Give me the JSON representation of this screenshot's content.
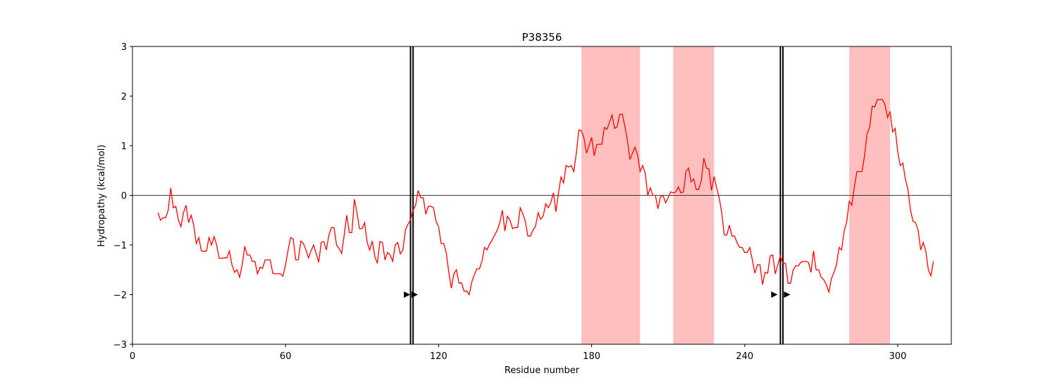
{
  "chart_data": {
    "type": "line",
    "title": "P38356",
    "x_label": "Residue number",
    "y_label": "Hydropathy (kcal/mol)",
    "color": "#ff0000",
    "x": [
      10,
      11,
      12,
      13,
      14,
      15,
      16,
      17,
      18,
      19,
      20,
      21,
      22,
      23,
      24,
      25,
      26,
      27,
      28,
      29,
      30,
      31,
      32,
      33,
      34,
      35,
      36,
      37,
      38,
      39,
      40,
      41,
      42,
      43,
      44,
      45,
      46,
      47,
      48,
      49,
      50,
      51,
      52,
      53,
      54,
      55,
      56,
      57,
      58,
      59,
      60,
      61,
      62,
      63,
      64,
      65,
      66,
      67,
      68,
      69,
      70,
      71,
      72,
      73,
      74,
      75,
      76,
      77,
      78,
      79,
      80,
      81,
      82,
      83,
      84,
      85,
      86,
      87,
      88,
      89,
      90,
      91,
      92,
      93,
      94,
      95,
      96,
      97,
      98,
      99,
      100,
      101,
      102,
      103,
      104,
      105,
      106,
      107,
      108,
      109,
      110,
      111,
      112,
      113,
      114,
      115,
      116,
      117,
      118,
      119,
      120,
      121,
      122,
      123,
      124,
      125,
      126,
      127,
      128,
      129,
      130,
      131,
      132,
      133,
      134,
      135,
      136,
      137,
      138,
      139,
      140,
      141,
      142,
      143,
      144,
      145,
      146,
      147,
      148,
      149,
      150,
      151,
      152,
      153,
      154,
      155,
      156,
      157,
      158,
      159,
      160,
      161,
      162,
      163,
      164,
      165,
      166,
      167,
      168,
      169,
      170,
      171,
      172,
      173,
      174,
      175,
      176,
      177,
      178,
      179,
      180,
      181,
      182,
      183,
      184,
      185,
      186,
      187,
      188,
      189,
      190,
      191,
      192,
      193,
      194,
      195,
      196,
      197,
      198,
      199,
      200,
      201,
      202,
      203,
      204,
      205,
      206,
      207,
      208,
      209,
      210,
      211,
      212,
      213,
      214,
      215,
      216,
      217,
      218,
      219,
      220,
      221,
      222,
      223,
      224,
      225,
      226,
      227,
      228,
      229,
      230,
      231,
      232,
      233,
      234,
      235,
      236,
      237,
      238,
      239,
      240,
      241,
      242,
      243,
      244,
      245,
      246,
      247,
      248,
      249,
      250,
      251,
      252,
      253,
      254,
      255,
      256,
      257,
      258,
      259,
      260,
      261,
      262,
      263,
      264,
      265,
      266,
      267,
      268,
      269,
      270,
      271,
      272,
      273,
      274,
      275,
      276,
      277,
      278,
      279,
      280,
      281,
      282,
      283,
      284,
      285,
      286,
      287,
      288,
      289,
      290,
      291,
      292,
      293,
      294,
      295,
      296,
      297,
      298,
      299,
      300,
      301,
      302,
      303,
      304,
      305,
      306,
      307,
      308,
      309,
      310,
      311,
      312,
      313,
      314
    ],
    "values": [
      -0.35,
      -0.5,
      -0.45,
      -0.45,
      -0.3,
      0.15,
      -0.25,
      -0.22,
      -0.5,
      -0.63,
      -0.35,
      -0.2,
      -0.55,
      -0.4,
      -0.6,
      -0.97,
      -0.85,
      -1.12,
      -1.13,
      -1.12,
      -0.85,
      -1.0,
      -0.83,
      -1.0,
      -1.27,
      -1.27,
      -1.26,
      -1.26,
      -1.12,
      -1.4,
      -1.55,
      -1.5,
      -1.65,
      -1.4,
      -1.03,
      -1.2,
      -1.2,
      -1.33,
      -1.33,
      -1.58,
      -1.45,
      -1.47,
      -1.3,
      -1.3,
      -1.3,
      -1.57,
      -1.58,
      -1.58,
      -1.58,
      -1.63,
      -1.4,
      -1.1,
      -0.85,
      -0.88,
      -1.3,
      -1.3,
      -0.92,
      -0.97,
      -1.1,
      -1.26,
      -1.12,
      -1.0,
      -1.17,
      -1.35,
      -0.95,
      -0.93,
      -1.1,
      -0.8,
      -0.65,
      -0.65,
      -1.0,
      -1.07,
      -1.17,
      -0.8,
      -0.4,
      -0.75,
      -0.75,
      -0.08,
      -0.35,
      -0.67,
      -0.67,
      -0.55,
      -0.95,
      -1.1,
      -0.92,
      -1.23,
      -1.37,
      -0.93,
      -0.95,
      -1.3,
      -1.15,
      -1.2,
      -1.33,
      -1.0,
      -0.95,
      -1.18,
      -1.1,
      -0.7,
      -0.58,
      -0.5,
      -0.3,
      -0.2,
      0.1,
      -0.05,
      -0.05,
      -0.38,
      -0.22,
      -0.22,
      -0.25,
      -0.52,
      -0.63,
      -0.97,
      -0.97,
      -1.15,
      -1.55,
      -1.87,
      -1.58,
      -1.5,
      -1.77,
      -1.76,
      -1.93,
      -1.93,
      -2.0,
      -1.75,
      -1.6,
      -1.48,
      -1.48,
      -1.33,
      -1.05,
      -1.1,
      -0.98,
      -0.9,
      -0.8,
      -0.7,
      -0.55,
      -0.3,
      -0.72,
      -0.42,
      -0.5,
      -0.67,
      -0.65,
      -0.65,
      -0.25,
      -0.37,
      -0.52,
      -0.82,
      -0.82,
      -0.7,
      -0.62,
      -0.35,
      -0.48,
      -0.42,
      -0.17,
      -0.25,
      -0.15,
      0.05,
      -0.33,
      0.05,
      0.37,
      0.25,
      0.6,
      0.57,
      0.6,
      0.48,
      0.85,
      1.32,
      1.3,
      1.15,
      0.85,
      1.0,
      1.17,
      0.8,
      1.02,
      1.03,
      1.03,
      1.37,
      1.33,
      1.47,
      1.62,
      1.35,
      1.38,
      1.63,
      1.64,
      1.4,
      1.12,
      0.72,
      0.85,
      0.97,
      0.82,
      0.48,
      0.6,
      0.45,
      0.0,
      0.15,
      0.0,
      0.0,
      -0.27,
      -0.03,
      0.0,
      -0.15,
      -0.05,
      0.07,
      0.05,
      0.07,
      0.17,
      0.05,
      0.07,
      0.48,
      0.55,
      0.27,
      0.33,
      0.12,
      0.12,
      0.3,
      0.75,
      0.55,
      0.53,
      0.1,
      0.38,
      0.15,
      -0.05,
      -0.35,
      -0.8,
      -0.8,
      -0.6,
      -0.82,
      -0.82,
      -0.95,
      -1.05,
      -1.05,
      -1.15,
      -1.15,
      -1.05,
      -1.3,
      -1.57,
      -1.4,
      -1.4,
      -1.8,
      -1.55,
      -1.57,
      -1.22,
      -1.2,
      -1.58,
      -1.4,
      -1.22,
      -1.37,
      -1.37,
      -1.77,
      -1.77,
      -1.5,
      -1.42,
      -1.42,
      -1.35,
      -1.33,
      -1.33,
      -1.35,
      -1.55,
      -1.12,
      -1.5,
      -1.5,
      -1.65,
      -1.7,
      -1.8,
      -1.95,
      -1.68,
      -1.55,
      -1.4,
      -1.05,
      -1.1,
      -0.72,
      -0.53,
      -0.12,
      -0.2,
      0.17,
      0.48,
      0.48,
      0.48,
      0.8,
      1.25,
      1.37,
      1.8,
      1.78,
      1.93,
      1.93,
      1.93,
      1.83,
      1.57,
      1.68,
      1.28,
      1.35,
      0.88,
      0.6,
      0.65,
      0.33,
      0.12,
      -0.3,
      -0.52,
      -0.55,
      -0.7,
      -1.1,
      -0.95,
      -1.12,
      -1.5,
      -1.62,
      -1.33
    ],
    "xlim": [
      0,
      321
    ],
    "xticks": [
      0,
      60,
      120,
      180,
      240,
      300
    ],
    "ylim": [
      -3,
      3
    ],
    "yticks": [
      {
        "value": -3,
        "label": "−3"
      },
      {
        "value": -2,
        "label": "−2"
      },
      {
        "value": -1,
        "label": "−1"
      },
      0,
      1,
      2,
      3
    ],
    "hline": 0,
    "spans": [
      [
        176,
        199
      ],
      [
        212,
        228
      ],
      [
        281,
        297
      ]
    ],
    "span_color": "#ffbfbf",
    "vlines": [
      109,
      110,
      254,
      255
    ],
    "markers": {
      "x": [
        107.5,
        110.5,
        251.5,
        256.5
      ],
      "y": [
        -2,
        -2,
        -2,
        -2
      ]
    }
  }
}
